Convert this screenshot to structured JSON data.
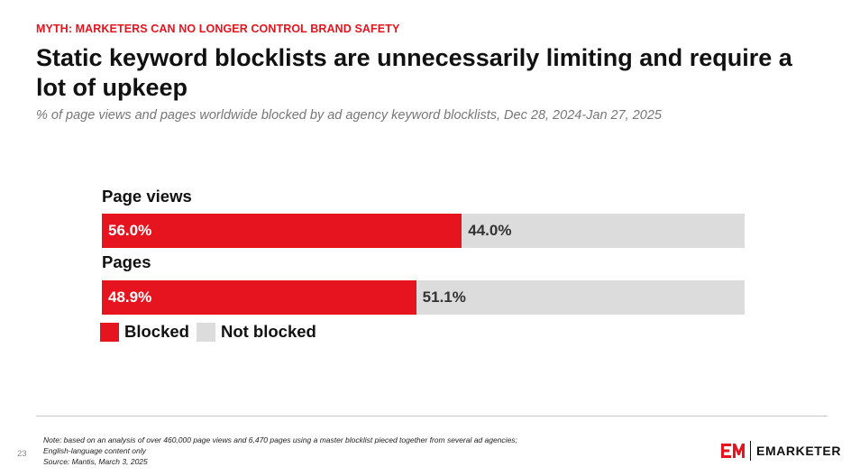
{
  "header": {
    "kicker": "MYTH: MARKETERS CAN NO LONGER CONTROL BRAND SAFETY",
    "title": "Static keyword blocklists are unnecessarily limiting and require a lot of upkeep",
    "subtitle": "% of page views and pages worldwide blocked by ad agency keyword blocklists, Dec 28, 2024-Jan 27, 2025"
  },
  "colors": {
    "accent": "#e5141e",
    "neutral": "#dcdcdc"
  },
  "chart_data": {
    "type": "bar",
    "orientation": "horizontal",
    "stacked": true,
    "categories": [
      "Page views",
      "Pages"
    ],
    "series": [
      {
        "name": "Blocked",
        "values": [
          56.0,
          48.9
        ],
        "labels": [
          "56.0%",
          "48.9%"
        ],
        "color": "#e5141e"
      },
      {
        "name": "Not blocked",
        "values": [
          44.0,
          51.1
        ],
        "labels": [
          "44.0%",
          "51.1%"
        ],
        "color": "#dcdcdc"
      }
    ],
    "xlim": [
      0,
      100
    ],
    "grid": false,
    "legend": "bottom-left"
  },
  "footer": {
    "page_number": "23",
    "note_lines": [
      "Note: based on an analysis of over 460,000 page views and 6,470 pages using a master blocklist pieced together from several ad agencies;",
      "English-language content only",
      "Source: Mantis, March 3, 2025"
    ],
    "brand": "EMARKETER",
    "logo_icon": "em-logo-icon"
  }
}
